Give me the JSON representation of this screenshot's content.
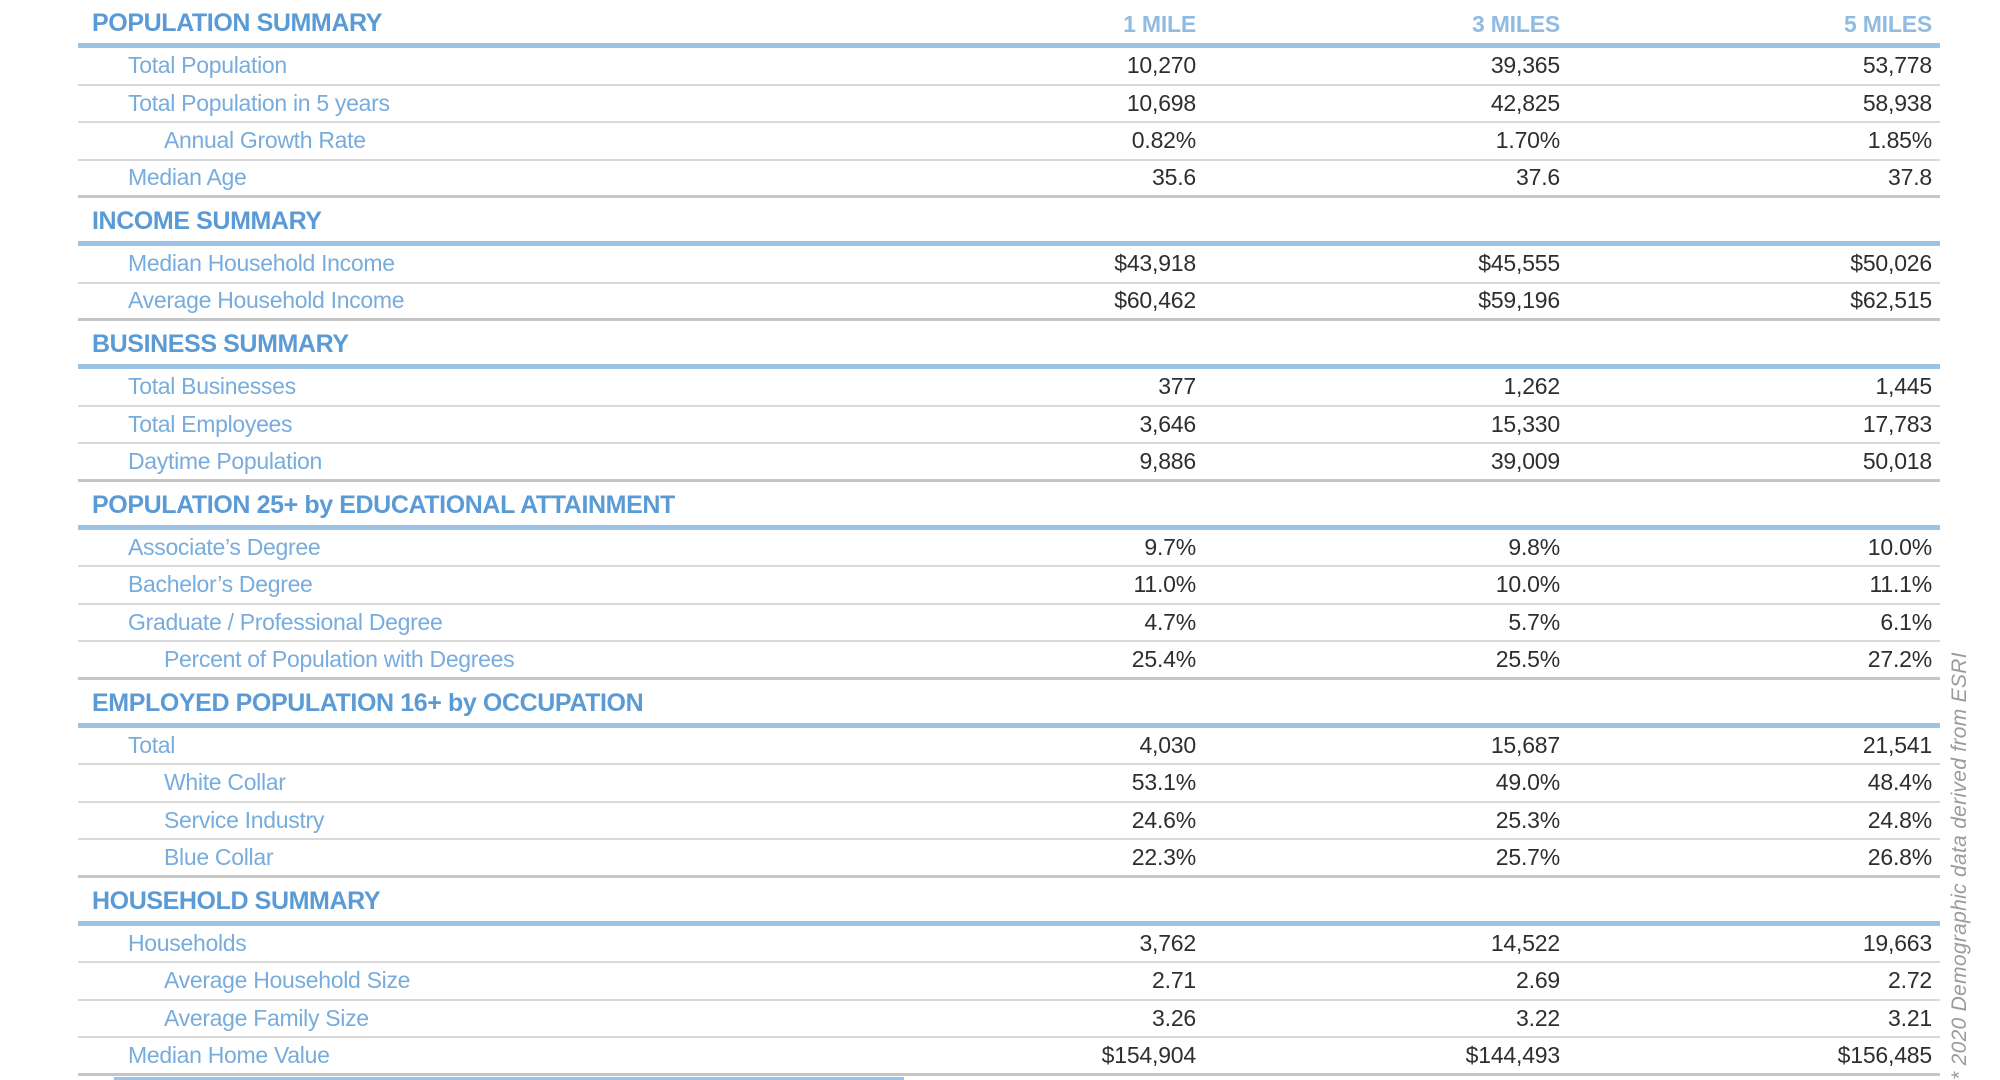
{
  "columns": [
    "1 MILE",
    "3 MILES",
    "5 MILES"
  ],
  "sections": [
    {
      "title": "POPULATION SUMMARY",
      "rows": [
        {
          "label": "Total Population",
          "indent": 1,
          "values": [
            "10,270",
            "39,365",
            "53,778"
          ]
        },
        {
          "label": "Total Population in 5 years",
          "indent": 1,
          "values": [
            "10,698",
            "42,825",
            "58,938"
          ]
        },
        {
          "label": "Annual Growth Rate",
          "indent": 2,
          "values": [
            "0.82%",
            "1.70%",
            "1.85%"
          ]
        },
        {
          "label": "Median Age",
          "indent": 1,
          "values": [
            "35.6",
            "37.6",
            "37.8"
          ]
        }
      ]
    },
    {
      "title": "INCOME SUMMARY",
      "rows": [
        {
          "label": "Median Household Income",
          "indent": 1,
          "values": [
            "$43,918",
            "$45,555",
            "$50,026"
          ]
        },
        {
          "label": "Average Household Income",
          "indent": 1,
          "values": [
            "$60,462",
            "$59,196",
            "$62,515"
          ]
        }
      ]
    },
    {
      "title": "BUSINESS SUMMARY",
      "rows": [
        {
          "label": "Total Businesses",
          "indent": 1,
          "values": [
            "377",
            "1,262",
            "1,445"
          ]
        },
        {
          "label": "Total Employees",
          "indent": 1,
          "values": [
            "3,646",
            "15,330",
            "17,783"
          ]
        },
        {
          "label": "Daytime Population",
          "indent": 1,
          "values": [
            "9,886",
            "39,009",
            "50,018"
          ]
        }
      ]
    },
    {
      "title": "POPULATION 25+ by EDUCATIONAL ATTAINMENT",
      "rows": [
        {
          "label": "Associate’s Degree",
          "indent": 1,
          "values": [
            "9.7%",
            "9.8%",
            "10.0%"
          ]
        },
        {
          "label": "Bachelor’s Degree",
          "indent": 1,
          "values": [
            "11.0%",
            "10.0%",
            "11.1%"
          ]
        },
        {
          "label": "Graduate / Professional Degree",
          "indent": 1,
          "values": [
            "4.7%",
            "5.7%",
            "6.1%"
          ]
        },
        {
          "label": "Percent of Population with Degrees",
          "indent": 2,
          "values": [
            "25.4%",
            "25.5%",
            "27.2%"
          ]
        }
      ]
    },
    {
      "title": "EMPLOYED POPULATION 16+ by OCCUPATION",
      "rows": [
        {
          "label": "Total",
          "indent": 1,
          "values": [
            "4,030",
            "15,687",
            "21,541"
          ]
        },
        {
          "label": "White Collar",
          "indent": 2,
          "values": [
            "53.1%",
            "49.0%",
            "48.4%"
          ]
        },
        {
          "label": "Service Industry",
          "indent": 2,
          "values": [
            "24.6%",
            "25.3%",
            "24.8%"
          ]
        },
        {
          "label": "Blue Collar",
          "indent": 2,
          "values": [
            "22.3%",
            "25.7%",
            "26.8%"
          ]
        }
      ]
    },
    {
      "title": "HOUSEHOLD SUMMARY",
      "rows": [
        {
          "label": "Households",
          "indent": 1,
          "values": [
            "3,762",
            "14,522",
            "19,663"
          ]
        },
        {
          "label": "Average Household Size",
          "indent": 2,
          "values": [
            "2.71",
            "2.69",
            "2.72"
          ]
        },
        {
          "label": "Average Family Size",
          "indent": 2,
          "values": [
            "3.26",
            "3.22",
            "3.21"
          ]
        },
        {
          "label": "Median Home Value",
          "indent": 1,
          "values": [
            "$154,904",
            "$144,493",
            "$156,485"
          ]
        }
      ]
    }
  ],
  "footnote": "* 2020 Demographic data derived from ESRI",
  "colors": {
    "section_title_blue": "#5b9bd5",
    "rule_blue": "#9cc3e5",
    "row_label_blue": "#77acdc",
    "column_header_blue": "#90bce4",
    "value_dark": "#2e2e2e",
    "separator_gray": "#d9d9d9",
    "footnote_gray": "#9a9aa0"
  }
}
